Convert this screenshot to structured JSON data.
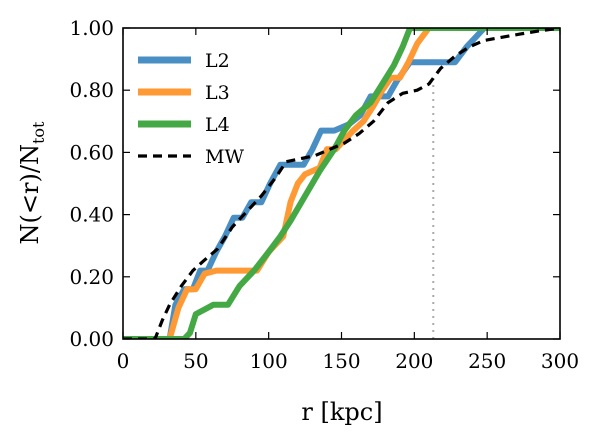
{
  "chart_data": {
    "type": "line",
    "xlabel": "r [kpc]",
    "ylabel": "N(<r)/N_tot",
    "ylabel_main": "N(<r)/N",
    "ylabel_sub": "tot",
    "xlim": [
      0,
      300
    ],
    "ylim": [
      0,
      1
    ],
    "xticks": [
      0,
      50,
      100,
      150,
      200,
      250,
      300
    ],
    "yticks": [
      0.0,
      0.2,
      0.4,
      0.6,
      0.8,
      1.0
    ],
    "xtick_labels": [
      "0",
      "50",
      "100",
      "150",
      "200",
      "250",
      "300"
    ],
    "ytick_labels": [
      "0.00",
      "0.20",
      "0.40",
      "0.60",
      "0.80",
      "1.00"
    ],
    "grid": false,
    "legend_position": "top-left",
    "reference_line": {
      "x": 213,
      "style": "dotted",
      "color": "#aaaaaa"
    },
    "series": [
      {
        "name": "L2",
        "color": "#4a8fc4",
        "style": "solid",
        "points": [
          [
            0,
            0
          ],
          [
            32,
            0
          ],
          [
            36,
            0.11
          ],
          [
            42,
            0.16
          ],
          [
            48,
            0.16
          ],
          [
            53,
            0.22
          ],
          [
            58,
            0.22
          ],
          [
            64,
            0.28
          ],
          [
            70,
            0.33
          ],
          [
            76,
            0.39
          ],
          [
            82,
            0.39
          ],
          [
            88,
            0.44
          ],
          [
            95,
            0.44
          ],
          [
            101,
            0.5
          ],
          [
            108,
            0.56
          ],
          [
            118,
            0.56
          ],
          [
            124,
            0.56
          ],
          [
            130,
            0.61
          ],
          [
            136,
            0.67
          ],
          [
            145,
            0.67
          ],
          [
            155,
            0.69
          ],
          [
            163,
            0.72
          ],
          [
            170,
            0.78
          ],
          [
            182,
            0.78
          ],
          [
            188,
            0.83
          ],
          [
            197,
            0.89
          ],
          [
            205,
            0.89
          ],
          [
            213,
            0.89
          ],
          [
            220,
            0.89
          ],
          [
            228,
            0.89
          ],
          [
            236,
            0.94
          ],
          [
            248,
            1.0
          ],
          [
            300,
            1.0
          ]
        ]
      },
      {
        "name": "L3",
        "color": "#ff9933",
        "style": "solid",
        "points": [
          [
            0,
            0
          ],
          [
            32,
            0
          ],
          [
            38,
            0.1
          ],
          [
            44,
            0.16
          ],
          [
            50,
            0.16
          ],
          [
            56,
            0.21
          ],
          [
            64,
            0.22
          ],
          [
            70,
            0.22
          ],
          [
            80,
            0.22
          ],
          [
            92,
            0.22
          ],
          [
            100,
            0.28
          ],
          [
            110,
            0.33
          ],
          [
            115,
            0.44
          ],
          [
            120,
            0.5
          ],
          [
            125,
            0.53
          ],
          [
            135,
            0.55
          ],
          [
            140,
            0.61
          ],
          [
            146,
            0.61
          ],
          [
            152,
            0.64
          ],
          [
            158,
            0.67
          ],
          [
            165,
            0.7
          ],
          [
            172,
            0.75
          ],
          [
            178,
            0.8
          ],
          [
            184,
            0.84
          ],
          [
            190,
            0.84
          ],
          [
            196,
            0.89
          ],
          [
            202,
            0.95
          ],
          [
            210,
            1.0
          ],
          [
            300,
            1.0
          ]
        ]
      },
      {
        "name": "L4",
        "color": "#44a844",
        "style": "solid",
        "points": [
          [
            0,
            0
          ],
          [
            42,
            0
          ],
          [
            46,
            0.02
          ],
          [
            50,
            0.08
          ],
          [
            54,
            0.09
          ],
          [
            62,
            0.11
          ],
          [
            72,
            0.11
          ],
          [
            80,
            0.17
          ],
          [
            90,
            0.22
          ],
          [
            100,
            0.28
          ],
          [
            108,
            0.33
          ],
          [
            115,
            0.38
          ],
          [
            125,
            0.46
          ],
          [
            135,
            0.54
          ],
          [
            145,
            0.61
          ],
          [
            152,
            0.67
          ],
          [
            160,
            0.72
          ],
          [
            170,
            0.76
          ],
          [
            178,
            0.82
          ],
          [
            186,
            0.88
          ],
          [
            192,
            0.94
          ],
          [
            197,
            1.0
          ],
          [
            300,
            1.0
          ]
        ]
      },
      {
        "name": "MW",
        "color": "#000000",
        "style": "dashed",
        "points": [
          [
            0,
            0
          ],
          [
            22,
            0
          ],
          [
            27,
            0.06
          ],
          [
            32,
            0.11
          ],
          [
            40,
            0.17
          ],
          [
            48,
            0.22
          ],
          [
            55,
            0.25
          ],
          [
            65,
            0.29
          ],
          [
            75,
            0.36
          ],
          [
            85,
            0.41
          ],
          [
            95,
            0.46
          ],
          [
            105,
            0.52
          ],
          [
            112,
            0.57
          ],
          [
            122,
            0.58
          ],
          [
            132,
            0.59
          ],
          [
            142,
            0.61
          ],
          [
            152,
            0.63
          ],
          [
            162,
            0.66
          ],
          [
            172,
            0.7
          ],
          [
            182,
            0.76
          ],
          [
            192,
            0.79
          ],
          [
            202,
            0.8
          ],
          [
            210,
            0.82
          ],
          [
            218,
            0.87
          ],
          [
            228,
            0.91
          ],
          [
            238,
            0.94
          ],
          [
            248,
            0.96
          ],
          [
            260,
            0.97
          ],
          [
            272,
            0.98
          ],
          [
            285,
            0.99
          ],
          [
            300,
            1.0
          ]
        ]
      }
    ]
  }
}
